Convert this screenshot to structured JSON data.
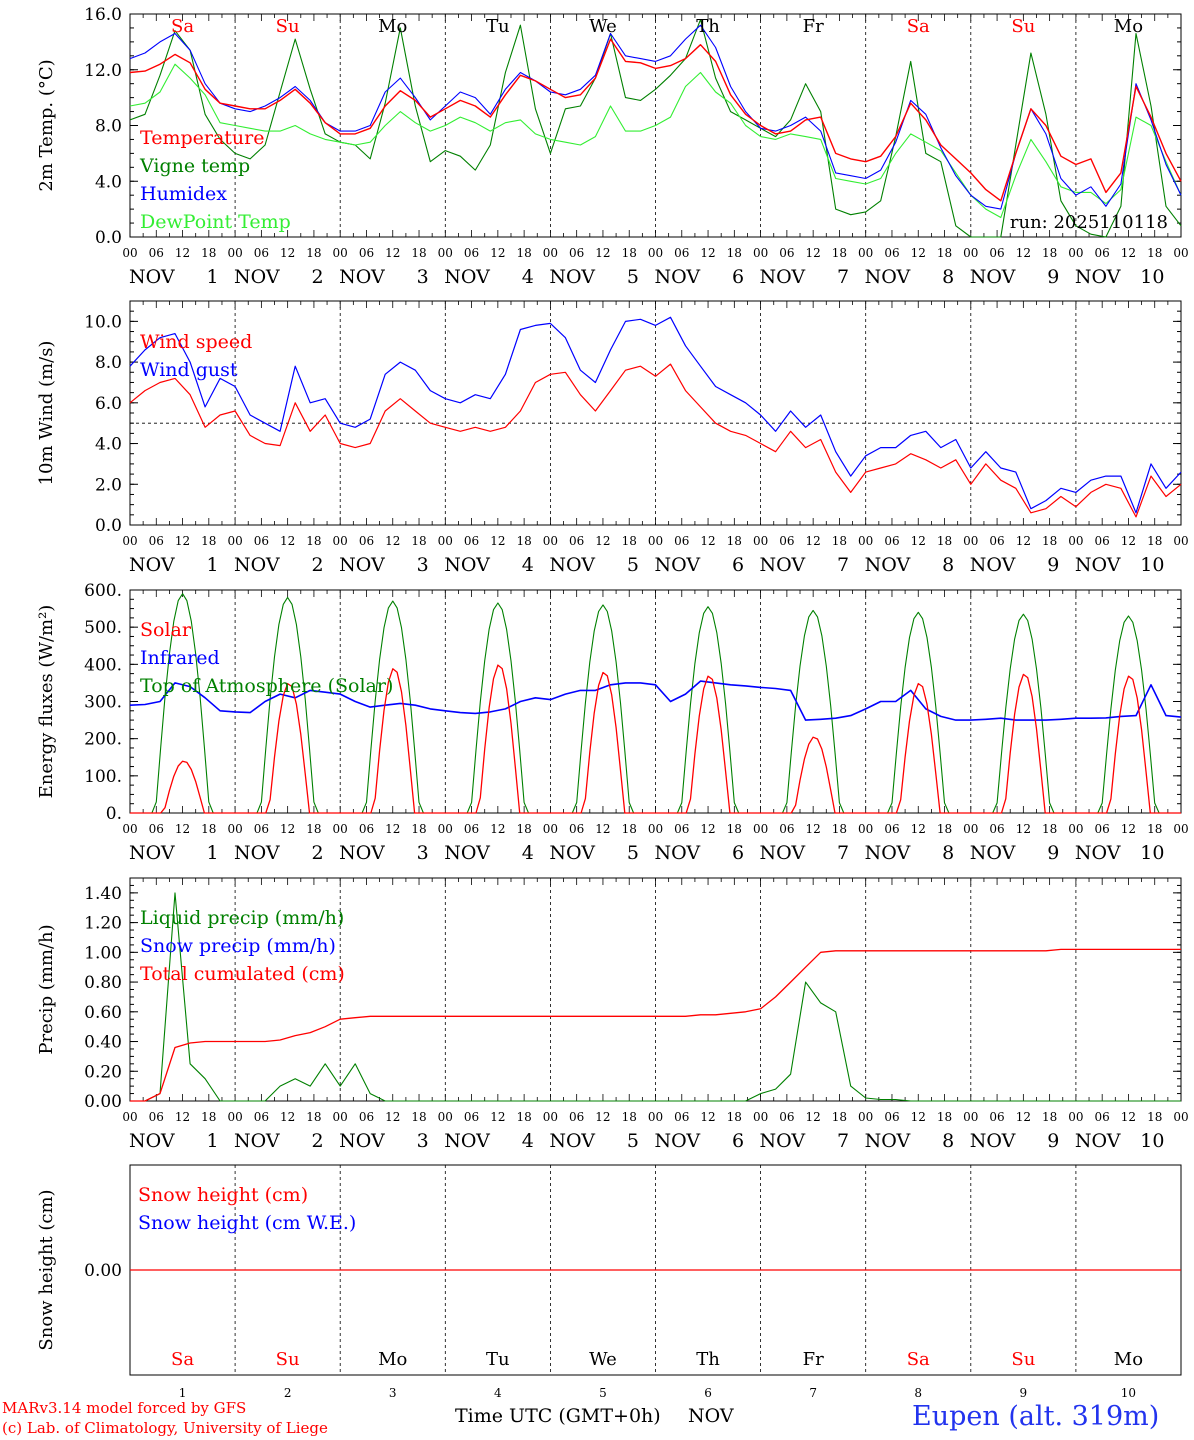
{
  "chart_data": [
    {
      "type": "line",
      "ylabel": "2m Temp. (°C)",
      "ylim": [
        0,
        16
      ],
      "ytick_labels": [
        "0.0",
        "4.0",
        "8.0",
        "12.0",
        "16.0"
      ],
      "annotation": "run: 2025110118",
      "series": [
        {
          "name": "Temperature",
          "color": "#ff0000",
          "values": [
            11.8,
            11.9,
            12.4,
            13.1,
            12.5,
            10.6,
            9.6,
            9.4,
            9.2,
            9.2,
            9.8,
            10.6,
            9.6,
            8.2,
            7.4,
            7.4,
            7.8,
            9.4,
            10.5,
            9.8,
            8.6,
            9.2,
            9.8,
            9.4,
            8.6,
            10.2,
            11.6,
            11.2,
            10.6,
            10.0,
            10.2,
            11.4,
            14.2,
            12.6,
            12.5,
            12.1,
            12.3,
            12.8,
            13.8,
            12.6,
            10.2,
            8.8,
            8.0,
            7.4,
            7.6,
            8.4,
            8.6,
            6.0,
            5.6,
            5.4,
            5.8,
            7.2,
            9.6,
            8.4,
            6.6,
            5.6,
            4.6,
            3.4,
            2.6,
            6.0,
            9.2,
            8.0,
            5.8,
            5.2,
            5.6,
            3.2,
            4.6,
            10.8,
            8.6,
            6.0,
            4.0
          ]
        },
        {
          "name": "Vigne temp",
          "color": "#008000",
          "values": [
            8.4,
            8.8,
            11.6,
            14.8,
            13.4,
            8.8,
            7.0,
            6.0,
            5.6,
            6.6,
            10.4,
            14.2,
            10.6,
            7.4,
            6.8,
            6.6,
            5.6,
            9.6,
            15.0,
            9.4,
            5.4,
            6.2,
            5.8,
            4.8,
            6.6,
            11.8,
            15.2,
            9.2,
            6.0,
            9.2,
            9.4,
            11.4,
            14.6,
            10.0,
            9.8,
            10.6,
            11.6,
            12.8,
            15.6,
            11.4,
            9.0,
            8.4,
            7.8,
            7.2,
            8.4,
            11.0,
            9.0,
            2.0,
            1.6,
            1.8,
            2.6,
            7.2,
            12.6,
            6.0,
            5.4,
            0.8,
            0.0,
            0.0,
            0.0,
            6.6,
            13.2,
            8.8,
            2.6,
            0.8,
            0.2,
            0.0,
            2.2,
            14.6,
            9.4,
            2.2,
            0.8
          ]
        },
        {
          "name": "Humidex",
          "color": "#0000ff",
          "values": [
            12.8,
            13.2,
            14.0,
            14.6,
            13.4,
            11.0,
            9.6,
            9.2,
            9.0,
            9.4,
            10.0,
            10.8,
            9.8,
            8.2,
            7.6,
            7.6,
            8.0,
            10.4,
            11.4,
            10.0,
            8.4,
            9.4,
            10.4,
            10.0,
            8.8,
            10.6,
            11.8,
            11.2,
            10.4,
            10.2,
            10.6,
            11.6,
            14.6,
            13.0,
            12.8,
            12.6,
            13.0,
            14.2,
            15.2,
            13.6,
            10.8,
            9.0,
            7.8,
            7.6,
            8.0,
            8.6,
            7.6,
            4.6,
            4.4,
            4.2,
            4.8,
            6.8,
            9.8,
            8.8,
            6.4,
            4.4,
            3.0,
            2.2,
            2.0,
            6.0,
            9.2,
            7.4,
            4.2,
            3.0,
            3.6,
            2.2,
            3.8,
            11.0,
            8.4,
            5.2,
            3.0
          ]
        },
        {
          "name": "DewPoint Temp",
          "color": "#33ee33",
          "values": [
            9.4,
            9.6,
            10.4,
            12.4,
            11.4,
            10.2,
            8.2,
            8.0,
            7.8,
            7.6,
            7.6,
            8.0,
            7.4,
            7.0,
            6.8,
            6.6,
            6.8,
            8.0,
            9.0,
            8.2,
            7.6,
            8.0,
            8.6,
            8.2,
            7.6,
            8.2,
            8.4,
            7.4,
            7.0,
            6.8,
            6.6,
            7.2,
            9.4,
            7.6,
            7.6,
            8.0,
            8.6,
            10.8,
            11.8,
            10.4,
            9.6,
            8.0,
            7.2,
            7.0,
            7.4,
            7.2,
            7.0,
            4.2,
            4.0,
            3.8,
            4.2,
            6.0,
            7.4,
            6.8,
            6.2,
            4.6,
            3.0,
            2.0,
            1.4,
            4.4,
            7.0,
            5.4,
            3.6,
            3.2,
            3.2,
            2.4,
            3.4,
            8.6,
            8.0,
            5.4,
            3.0
          ]
        }
      ]
    },
    {
      "type": "line",
      "ylabel": "10m Wind (m/s)",
      "ylim": [
        0,
        11
      ],
      "ytick_labels": [
        "0.0",
        "2.0",
        "4.0",
        "6.0",
        "8.0",
        "10.0"
      ],
      "reference_line": 5,
      "series": [
        {
          "name": "Wind speed",
          "color": "#ff0000",
          "values": [
            6.0,
            6.6,
            7.0,
            7.2,
            6.4,
            4.8,
            5.4,
            5.6,
            4.4,
            4.0,
            3.9,
            6.0,
            4.6,
            5.4,
            4.0,
            3.8,
            4.0,
            5.6,
            6.2,
            5.6,
            5.0,
            4.8,
            4.6,
            4.8,
            4.6,
            4.8,
            5.6,
            7.0,
            7.4,
            7.5,
            6.4,
            5.6,
            6.6,
            7.6,
            7.8,
            7.3,
            7.9,
            6.6,
            5.8,
            5.0,
            4.6,
            4.4,
            4.0,
            3.6,
            4.6,
            3.8,
            4.2,
            2.6,
            1.6,
            2.6,
            2.8,
            3.0,
            3.5,
            3.2,
            2.8,
            3.2,
            2.0,
            3.0,
            2.2,
            1.8,
            0.6,
            0.8,
            1.4,
            0.9,
            1.6,
            2.0,
            1.8,
            0.4,
            2.4,
            1.4,
            2.0
          ]
        },
        {
          "name": "Wind gust",
          "color": "#0000ff",
          "values": [
            7.8,
            8.6,
            9.2,
            9.4,
            8.0,
            5.8,
            7.2,
            6.8,
            5.4,
            5.0,
            4.6,
            7.8,
            6.0,
            6.2,
            5.0,
            4.8,
            5.2,
            7.4,
            8.0,
            7.6,
            6.6,
            6.2,
            6.0,
            6.4,
            6.2,
            7.4,
            9.6,
            9.8,
            9.9,
            9.2,
            7.6,
            7.0,
            8.6,
            10.0,
            10.1,
            9.8,
            10.2,
            8.8,
            7.8,
            6.8,
            6.4,
            6.0,
            5.4,
            4.6,
            5.6,
            4.8,
            5.4,
            3.6,
            2.4,
            3.4,
            3.8,
            3.8,
            4.4,
            4.6,
            3.8,
            4.2,
            2.8,
            3.6,
            2.8,
            2.6,
            0.8,
            1.2,
            1.8,
            1.6,
            2.2,
            2.4,
            2.4,
            0.6,
            3.0,
            1.8,
            2.6
          ]
        }
      ]
    },
    {
      "type": "line",
      "ylabel": "Energy fluxes (W/m²)",
      "ylim": [
        0,
        600
      ],
      "ytick_labels": [
        "0.",
        "100.",
        "200.",
        "300.",
        "400.",
        "500.",
        "600."
      ],
      "series": [
        {
          "name": "Solar",
          "color": "#ff0000",
          "peaks": [
            140,
            350,
            390,
            400,
            380,
            370,
            205,
            350,
            375,
            370
          ]
        },
        {
          "name": "Infrared",
          "color": "#0000ff",
          "values": [
            290,
            292,
            300,
            350,
            340,
            310,
            275,
            272,
            270,
            300,
            320,
            310,
            330,
            325,
            320,
            300,
            285,
            290,
            295,
            290,
            280,
            275,
            270,
            268,
            272,
            280,
            300,
            310,
            305,
            320,
            330,
            330,
            345,
            350,
            350,
            345,
            300,
            320,
            355,
            350,
            345,
            342,
            338,
            335,
            330,
            250,
            252,
            255,
            262,
            280,
            300,
            300,
            330,
            280,
            260,
            250,
            250,
            252,
            255,
            250,
            250,
            250,
            252,
            255,
            255,
            256,
            260,
            262,
            345,
            262,
            258
          ]
        },
        {
          "name": "Top of Atmosphere (Solar)",
          "color": "#008000",
          "peaks": [
            590,
            580,
            570,
            565,
            560,
            555,
            545,
            540,
            535,
            530
          ]
        }
      ]
    },
    {
      "type": "line",
      "ylabel": "Precip (mm/h)",
      "ylim": [
        0,
        1.5
      ],
      "ytick_labels": [
        "0.00",
        "0.20",
        "0.40",
        "0.60",
        "0.80",
        "1.00",
        "1.20",
        "1.40"
      ],
      "series": [
        {
          "name": "Liquid precip (mm/h)",
          "color": "#008000",
          "values": [
            0,
            0,
            0.05,
            1.4,
            0.25,
            0.15,
            0,
            0,
            0,
            0,
            0.1,
            0.15,
            0.1,
            0.25,
            0.1,
            0.25,
            0.05,
            0,
            0,
            0,
            0,
            0,
            0,
            0,
            0,
            0,
            0,
            0,
            0,
            0,
            0,
            0,
            0,
            0,
            0,
            0,
            0,
            0,
            0,
            0,
            0,
            0,
            0.05,
            0.08,
            0.18,
            0.8,
            0.66,
            0.6,
            0.1,
            0.02,
            0.01,
            0.01,
            0,
            0,
            0,
            0,
            0,
            0,
            0,
            0,
            0,
            0,
            0,
            0,
            0,
            0,
            0,
            0,
            0,
            0,
            0
          ]
        },
        {
          "name": "Snow precip (mm/h)",
          "color": "#0000ff",
          "values": []
        },
        {
          "name": "Total cumulated (cm)",
          "color": "#ff0000",
          "values": [
            0,
            0,
            0.05,
            0.36,
            0.39,
            0.4,
            0.4,
            0.4,
            0.4,
            0.4,
            0.41,
            0.44,
            0.46,
            0.5,
            0.55,
            0.56,
            0.57,
            0.57,
            0.57,
            0.57,
            0.57,
            0.57,
            0.57,
            0.57,
            0.57,
            0.57,
            0.57,
            0.57,
            0.57,
            0.57,
            0.57,
            0.57,
            0.57,
            0.57,
            0.57,
            0.57,
            0.57,
            0.57,
            0.58,
            0.58,
            0.59,
            0.6,
            0.62,
            0.7,
            0.8,
            0.9,
            1.0,
            1.01,
            1.01,
            1.01,
            1.01,
            1.01,
            1.01,
            1.01,
            1.01,
            1.01,
            1.01,
            1.01,
            1.01,
            1.01,
            1.01,
            1.01,
            1.02,
            1.02,
            1.02,
            1.02,
            1.02,
            1.02,
            1.02,
            1.02,
            1.02
          ]
        }
      ]
    },
    {
      "type": "line",
      "ylabel": "Snow height (cm)",
      "ytick_labels": [
        "0.00"
      ],
      "series": [
        {
          "name": "Snow height (cm)",
          "color": "#ff0000",
          "values": [
            0,
            0
          ]
        },
        {
          "name": "Snow height (cm W.E.)",
          "color": "#0000ff",
          "values": []
        }
      ]
    }
  ],
  "hour_labels": [
    "00",
    "06",
    "12",
    "18"
  ],
  "end_hour_label": "00",
  "month_label": "NOV",
  "days": [
    "1",
    "2",
    "3",
    "4",
    "5",
    "6",
    "7",
    "8",
    "9",
    "10"
  ],
  "weekdays": [
    "Sa",
    "Su",
    "Mo",
    "Tu",
    "We",
    "Th",
    "Fr",
    "Sa",
    "Su",
    "Mo"
  ],
  "weekend_color": "#ff0000",
  "weekday_color": "#000000",
  "xlabel": "Time UTC (GMT+0h)",
  "footer": {
    "model": "MARv3.14 model forced by GFS",
    "copyright": "(c) Lab. of Climatology, University of Liege",
    "station": "Eupen (alt. 319m)"
  }
}
